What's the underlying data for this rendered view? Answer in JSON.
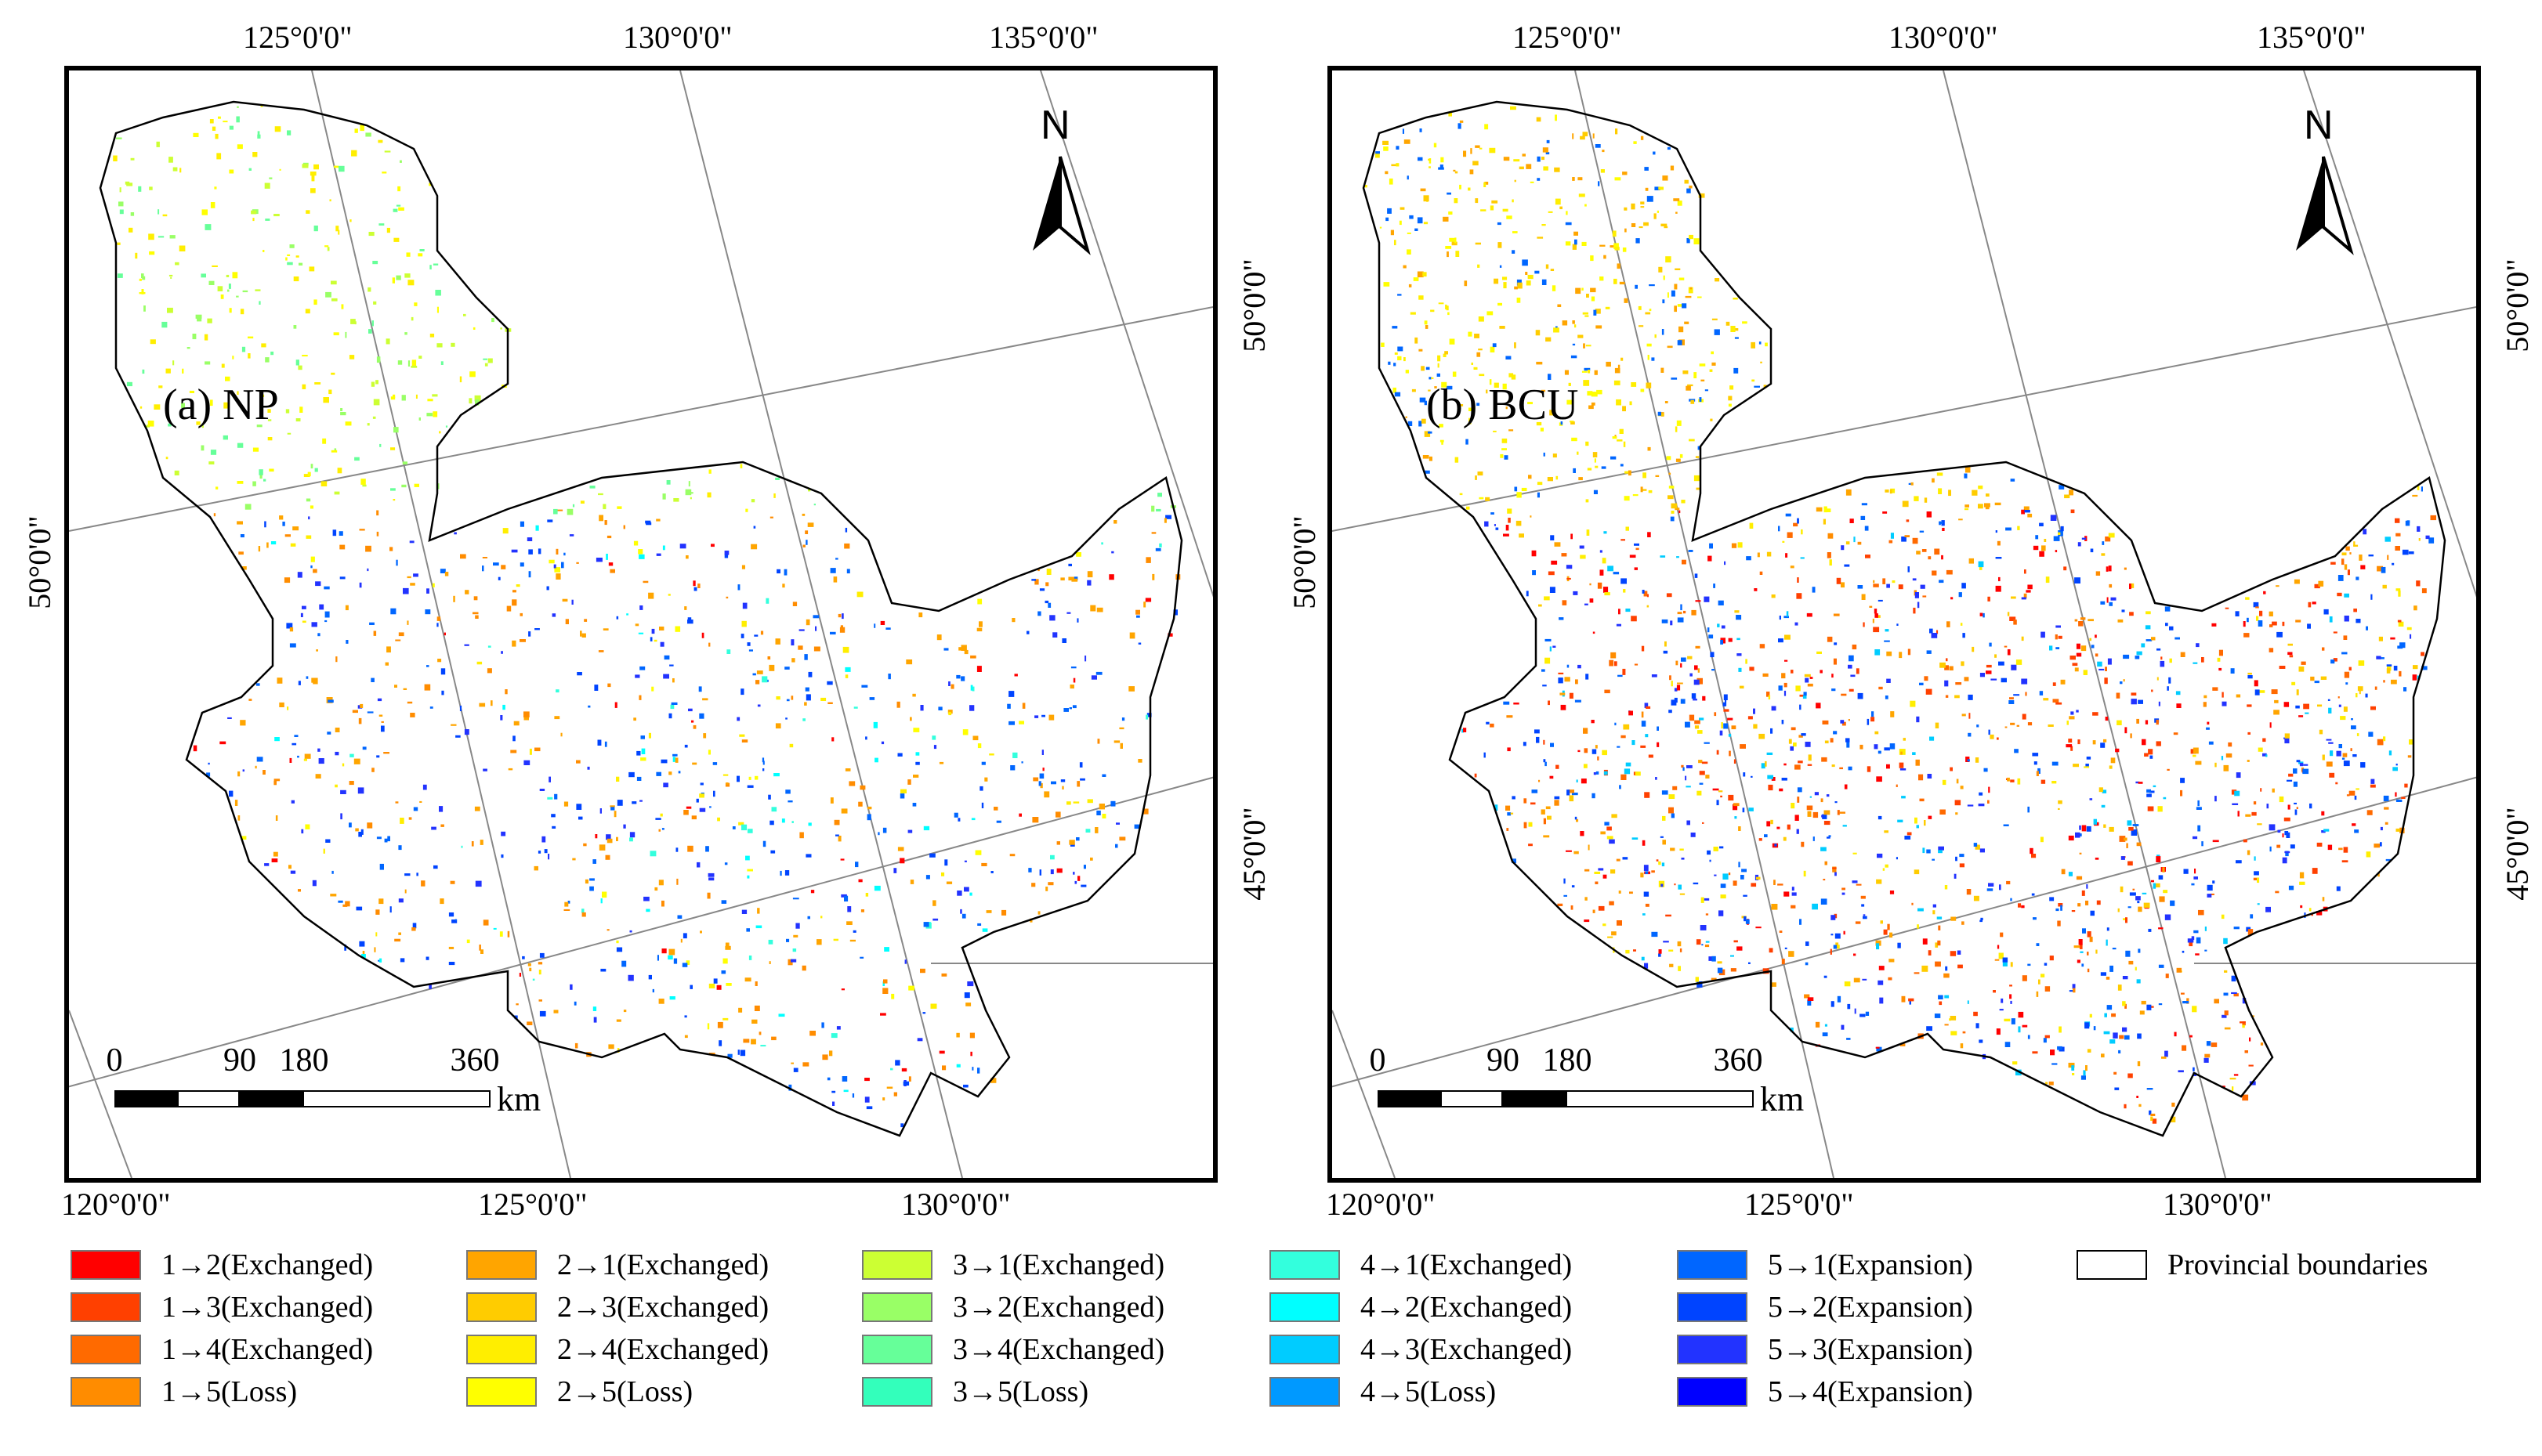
{
  "panels": [
    {
      "title": "(a) NP",
      "top_labels": [
        "125°0'0\"",
        "130°0'0\"",
        "135°0'0\""
      ],
      "bottom_labels": [
        "120°0'0\"",
        "125°0'0\"",
        "130°0'0\""
      ],
      "left_label": "50°0'0\"",
      "right_labels": [
        "50°0'0\"",
        "45°0'0\""
      ]
    },
    {
      "title": "(b) BCU",
      "top_labels": [
        "125°0'0\"",
        "130°0'0\"",
        "135°0'0\""
      ],
      "bottom_labels": [
        "120°0'0\"",
        "125°0'0\"",
        "130°0'0\""
      ],
      "left_label": "50°0'0\"",
      "right_labels": [
        "50°0'0\"",
        "45°0'0\""
      ]
    }
  ],
  "north_arrow": {
    "letter": "N"
  },
  "scale_bar": {
    "ticks": [
      "0",
      "90",
      "180",
      "360"
    ],
    "unit": "km"
  },
  "legend": {
    "columns": [
      [
        {
          "label": "1→2(Exchanged)",
          "color": "#ff0000"
        },
        {
          "label": "1→3(Exchanged)",
          "color": "#ff4000"
        },
        {
          "label": "1→4(Exchanged)",
          "color": "#ff6a00"
        },
        {
          "label": "1→5(Loss)",
          "color": "#ff8c00"
        }
      ],
      [
        {
          "label": "2→1(Exchanged)",
          "color": "#ffa500"
        },
        {
          "label": "2→3(Exchanged)",
          "color": "#ffcc00"
        },
        {
          "label": "2→4(Exchanged)",
          "color": "#ffee00"
        },
        {
          "label": "2→5(Loss)",
          "color": "#ffff00"
        }
      ],
      [
        {
          "label": "3→1(Exchanged)",
          "color": "#ccff33"
        },
        {
          "label": "3→2(Exchanged)",
          "color": "#99ff66"
        },
        {
          "label": "3→4(Exchanged)",
          "color": "#66ff99"
        },
        {
          "label": "3→5(Loss)",
          "color": "#33ffbb"
        }
      ],
      [
        {
          "label": "4→1(Exchanged)",
          "color": "#33ffdd"
        },
        {
          "label": "4→2(Exchanged)",
          "color": "#00ffff"
        },
        {
          "label": "4→3(Exchanged)",
          "color": "#00ccff"
        },
        {
          "label": "4→5(Loss)",
          "color": "#0099ff"
        }
      ],
      [
        {
          "label": "5→1(Expansion)",
          "color": "#0066ff"
        },
        {
          "label": "5→2(Expansion)",
          "color": "#0044ff"
        },
        {
          "label": "5→3(Expansion)",
          "color": "#2233ff"
        },
        {
          "label": "5→4(Expansion)",
          "color": "#0000ff"
        }
      ],
      [
        {
          "label": "Provincial boundaries",
          "color": "#ffffff"
        }
      ]
    ]
  }
}
